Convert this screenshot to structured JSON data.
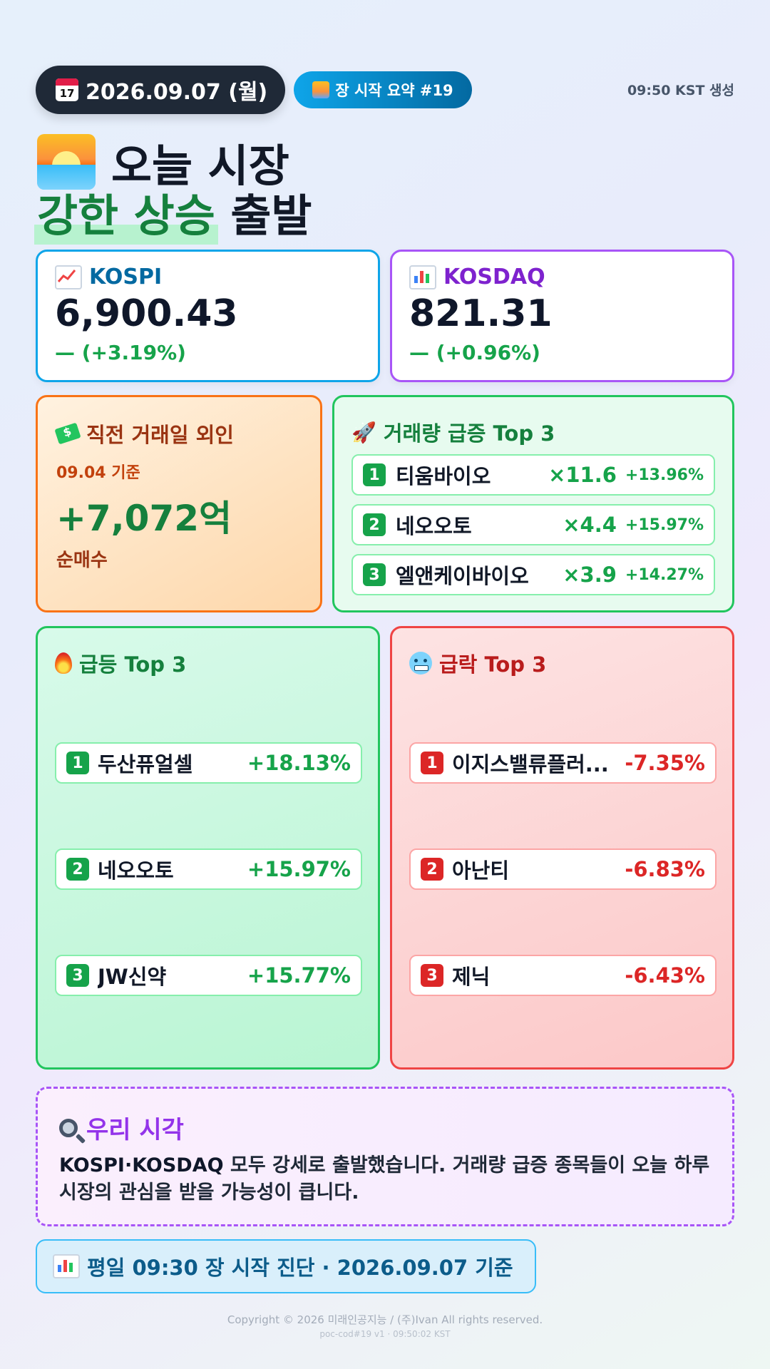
{
  "header": {
    "date": "2026.09.07 (월)",
    "calendar_text": "17",
    "badge": "장 시작 요약 #19",
    "generated": "09:50 KST 생성"
  },
  "title": {
    "line1": "오늘 시장",
    "highlight": "강한 상승",
    "line2_rest": " 출발"
  },
  "indices": {
    "kospi": {
      "name": "KOSPI",
      "value": "6,900.43",
      "change": "— (+3.19%)"
    },
    "kosdaq": {
      "name": "KOSDAQ",
      "value": "821.31",
      "change": "— (+0.96%)"
    }
  },
  "foreign": {
    "title": "직전 거래일 외인",
    "date": "09.04 기준",
    "amount": "+7,072억",
    "label": "순매수"
  },
  "volume": {
    "title": "거래량 급증 Top 3",
    "items": [
      {
        "rank": "1",
        "name": "티움바이오",
        "multiple": "×11.6",
        "pct": "+13.96%"
      },
      {
        "rank": "2",
        "name": "네오오토",
        "multiple": "×4.4",
        "pct": "+15.97%"
      },
      {
        "rank": "3",
        "name": "엘앤케이바이오",
        "multiple": "×3.9",
        "pct": "+14.27%"
      }
    ]
  },
  "gainers": {
    "title": "급등 Top 3",
    "items": [
      {
        "rank": "1",
        "name": "두산퓨얼셀",
        "pct": "+18.13%"
      },
      {
        "rank": "2",
        "name": "네오오토",
        "pct": "+15.97%"
      },
      {
        "rank": "3",
        "name": "JW신약",
        "pct": "+15.77%"
      }
    ]
  },
  "losers": {
    "title": "급락 Top 3",
    "items": [
      {
        "rank": "1",
        "name": "이지스밸류플러...",
        "pct": "-7.35%"
      },
      {
        "rank": "2",
        "name": "아난티",
        "pct": "-6.83%"
      },
      {
        "rank": "3",
        "name": "제닉",
        "pct": "-6.43%"
      }
    ]
  },
  "view": {
    "title": "우리 시각",
    "text_bold": "KOSPI·KOSDAQ",
    "text_rest": " 모두 강세로 출발했습니다. 거래량 급증 종목들이 오늘 하루 시장의 관심을 받을 가능성이 큽니다."
  },
  "footer": {
    "box": "평일 09:30 장 시작 진단 · 2026.09.07 기준",
    "copyright": "Copyright © 2026 미래인공지능 / (주)Ivan All rights reserved.",
    "version": "poc-cod#19 v1 · 09:50:02 KST"
  },
  "colors": {
    "up": "#16a34a",
    "down": "#dc2626",
    "kospi": "#0369a1",
    "kosdaq": "#7e22ce"
  },
  "icons": [
    "calendar-icon",
    "sunrise-icon",
    "chart-up-icon",
    "bar-chart-icon",
    "money-icon",
    "rocket-icon",
    "fire-icon",
    "cold-face-icon",
    "magnifier-icon"
  ]
}
